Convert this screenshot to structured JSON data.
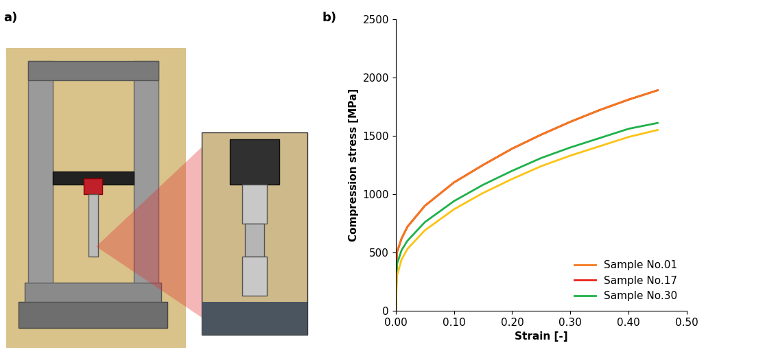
{
  "panel_labels": [
    "a)",
    "b)"
  ],
  "chart_data": {
    "type": "line",
    "x_label": "Strain [-]",
    "y_label": "Compression stress [MPa]",
    "x": [
      0,
      0.002,
      0.01,
      0.02,
      0.05,
      0.1,
      0.15,
      0.2,
      0.25,
      0.3,
      0.35,
      0.4,
      0.45
    ],
    "series": [
      {
        "name": "Sample No.17",
        "color": "#e8221a",
        "values": [
          0,
          500,
          620,
          720,
          900,
          1100,
          1250,
          1390,
          1510,
          1620,
          1720,
          1810,
          1890
        ]
      },
      {
        "name": "Sample No.01",
        "color": "#f4781e",
        "values": [
          0,
          500,
          620,
          720,
          900,
          1100,
          1250,
          1390,
          1510,
          1620,
          1720,
          1810,
          1890
        ]
      },
      {
        "name": "Sample No.30",
        "color": "#1fb14a",
        "values": [
          0,
          400,
          520,
          600,
          760,
          940,
          1080,
          1200,
          1310,
          1400,
          1480,
          1560,
          1610
        ]
      },
      {
        "color": "#fcc316",
        "values": [
          0,
          300,
          440,
          530,
          690,
          870,
          1010,
          1130,
          1240,
          1330,
          1410,
          1490,
          1550
        ]
      }
    ],
    "legend_order": [
      "Sample No.01",
      "Sample No.17",
      "Sample No.30"
    ],
    "xlim": [
      0,
      0.5
    ],
    "xticks": [
      {
        "value": 0,
        "label": "0.00"
      },
      {
        "value": 0.1,
        "label": "0.10"
      },
      {
        "value": 0.2,
        "label": "0.20"
      },
      {
        "value": 0.3,
        "label": "0.30"
      },
      {
        "value": 0.4,
        "label": "0.40"
      },
      {
        "value": 0.5,
        "label": "0.50"
      }
    ],
    "ylim": [
      0,
      2500
    ],
    "yticks": [
      0,
      500,
      1000,
      1500,
      2000,
      2500
    ],
    "grid": false,
    "legend": "lower right"
  }
}
